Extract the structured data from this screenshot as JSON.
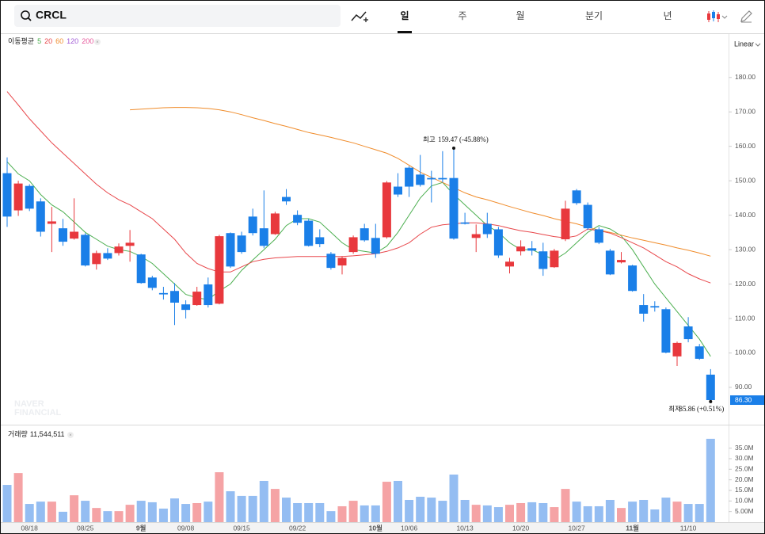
{
  "header": {
    "symbol": "CRCL",
    "tabs": [
      "일",
      "주",
      "월",
      "분기",
      "년"
    ],
    "active_tab": 0
  },
  "chart_data": [
    {
      "type": "candlestick",
      "ma_label": "이동평균",
      "scale": "Linear",
      "watermark": [
        "NAVER",
        "FINANCIAL"
      ],
      "up_color": "#e8383d",
      "down_color": "#1a7fe8",
      "categories": [
        null,
        null,
        "08/18",
        null,
        null,
        null,
        null,
        "08/25",
        null,
        null,
        null,
        null,
        "9월",
        null,
        null,
        null,
        "09/08",
        null,
        null,
        null,
        null,
        "09/15",
        null,
        null,
        null,
        null,
        "09/22",
        null,
        null,
        null,
        null,
        null,
        null,
        "10월",
        null,
        null,
        "10/06",
        null,
        null,
        null,
        null,
        "10/13",
        null,
        null,
        null,
        null,
        "10/20",
        null,
        null,
        null,
        null,
        "10/27",
        null,
        null,
        null,
        null,
        "11월",
        null,
        null,
        null,
        null,
        "11/10",
        null,
        null
      ],
      "open": [
        152.2,
        141.4,
        148.5,
        144.0,
        137.5,
        136.2,
        133.2,
        134.3,
        125.8,
        129.0,
        129.0,
        131.1,
        128.6,
        121.9,
        117.4,
        118.0,
        114.1,
        113.9,
        119.9,
        114.3,
        134.8,
        134.1,
        139.6,
        136.2,
        134.5,
        145.3,
        140.1,
        138.4,
        133.6,
        128.8,
        125.4,
        129.3,
        136.2,
        133.4,
        133.6,
        148.3,
        153.8,
        151.8,
        150.8,
        150.8,
        150.8,
        137.9,
        133.4,
        137.5,
        135.9,
        125.1,
        129.5,
        130.4,
        129.5,
        124.9,
        133.0,
        147.2,
        143.0,
        135.9,
        129.7,
        126.3,
        125.4,
        113.9,
        113.6,
        112.7,
        99.0,
        107.7,
        101.9,
        93.7
      ],
      "high": [
        156.8,
        150.0,
        149.0,
        144.9,
        142.4,
        138.9,
        144.9,
        134.8,
        129.7,
        130.4,
        131.8,
        135.7,
        128.8,
        122.4,
        119.2,
        120.3,
        115.3,
        119.2,
        121.9,
        134.3,
        135.0,
        135.2,
        141.9,
        147.2,
        141.0,
        147.6,
        141.4,
        138.9,
        135.9,
        129.3,
        128.1,
        134.1,
        137.5,
        137.5,
        149.9,
        152.2,
        154.3,
        157.5,
        152.9,
        158.6,
        159.47,
        140.7,
        137.3,
        140.7,
        136.6,
        127.6,
        132.7,
        132.5,
        132.0,
        130.2,
        144.2,
        147.6,
        143.7,
        136.6,
        130.2,
        129.3,
        125.6,
        117.1,
        115.0,
        113.2,
        103.3,
        110.4,
        102.6,
        95.3
      ],
      "low": [
        136.6,
        139.8,
        141.2,
        133.8,
        129.3,
        131.1,
        132.9,
        125.1,
        124.2,
        127.0,
        128.3,
        126.5,
        120.1,
        118.2,
        115.5,
        108.1,
        110.0,
        113.7,
        113.2,
        114.1,
        124.7,
        128.8,
        134.1,
        130.4,
        134.3,
        143.0,
        137.1,
        130.9,
        130.7,
        124.2,
        122.8,
        128.8,
        132.3,
        127.6,
        133.2,
        145.3,
        145.3,
        148.3,
        143.7,
        149.5,
        132.9,
        137.3,
        129.3,
        133.4,
        127.6,
        123.1,
        128.3,
        128.3,
        122.4,
        124.7,
        132.5,
        143.0,
        135.7,
        131.6,
        122.6,
        126.0,
        117.8,
        109.1,
        112.0,
        99.9,
        96.2,
        103.1,
        98.0,
        85.86
      ],
      "close": [
        139.6,
        149.2,
        141.9,
        135.2,
        138.2,
        132.3,
        135.2,
        125.4,
        129.0,
        127.4,
        130.9,
        132.0,
        120.3,
        118.9,
        117.0,
        114.6,
        112.5,
        117.8,
        113.9,
        133.9,
        125.1,
        129.3,
        134.8,
        131.1,
        140.5,
        144.0,
        137.8,
        131.1,
        131.6,
        124.7,
        127.6,
        133.6,
        132.7,
        128.8,
        149.5,
        146.0,
        148.3,
        148.8,
        150.4,
        150.4,
        133.2,
        137.5,
        134.5,
        134.5,
        128.3,
        126.5,
        130.9,
        129.7,
        124.4,
        129.7,
        141.9,
        143.5,
        136.2,
        132.0,
        122.8,
        127.0,
        118.0,
        111.4,
        113.2,
        100.1,
        102.9,
        104.0,
        98.3,
        86.3
      ],
      "moving_averages": [
        {
          "name": "5",
          "color": "#4caf50",
          "values": [
            155.5,
            152,
            150,
            146,
            143,
            141,
            138,
            135,
            133,
            131,
            130,
            129.5,
            128,
            126,
            123,
            120,
            117,
            116,
            115.5,
            118,
            120,
            124,
            127,
            130,
            133,
            137,
            139,
            139,
            138,
            135,
            132,
            130,
            129.5,
            129,
            131,
            135,
            140,
            145,
            148.5,
            149.5,
            146,
            143,
            140,
            137,
            135,
            132,
            130,
            130,
            128.5,
            127,
            129,
            132,
            135,
            137,
            136,
            134,
            130,
            125,
            120,
            116,
            112,
            108,
            104,
            99
          ]
        },
        {
          "name": "20",
          "color": "#e8474b",
          "values": [
            175.9,
            172,
            168,
            164.5,
            161,
            158,
            155,
            152,
            149,
            146.5,
            144.5,
            143,
            141,
            139,
            136,
            133,
            129,
            126,
            124.5,
            123.5,
            123.5,
            125,
            126.5,
            127.2,
            127.6,
            127.8,
            128,
            128,
            128,
            128,
            128,
            128.2,
            128.5,
            128.8,
            129.5,
            130.5,
            132,
            134.5,
            136.5,
            137.2,
            137.5,
            137.8,
            137.8,
            137.5,
            137,
            136.2,
            135.5,
            135,
            134.4,
            133.8,
            133.4,
            134,
            136,
            135.5,
            134.8,
            133.5,
            132,
            130.5,
            128.5,
            126.5,
            125,
            123,
            121.5,
            120.3
          ]
        },
        {
          "name": "60",
          "color": "#f08c2b",
          "values": [
            null,
            null,
            null,
            null,
            null,
            null,
            null,
            null,
            null,
            null,
            null,
            170.6,
            170.8,
            171,
            171.2,
            171.3,
            171.3,
            171.2,
            171,
            170.6,
            170,
            169.2,
            168.3,
            167.5,
            166.6,
            165.8,
            164.9,
            164,
            163.3,
            162.6,
            161.8,
            161,
            160,
            159,
            158,
            156.5,
            154.5,
            152.5,
            151,
            149.5,
            148,
            146.5,
            145.3,
            144.5,
            143.5,
            142.5,
            141.6,
            140.7,
            139.9,
            139,
            138.2,
            137.5,
            136.5,
            135.7,
            135,
            134.2,
            133.4,
            132.7,
            132,
            131.3,
            130.5,
            129.8,
            129,
            128.1
          ]
        },
        {
          "name": "120",
          "color": "#a15bd6"
        },
        {
          "name": "200",
          "color": "#e6559a"
        }
      ],
      "annotations": {
        "high_label": "최고",
        "high_text": "159.47 (-45.88%)",
        "low_label": "최저",
        "low_text": "85.86 (+0.51%)"
      },
      "last_price": {
        "value": 86.3,
        "label": "86.30"
      },
      "ylim": [
        79.4,
        192.6
      ],
      "yticks": [
        {
          "value": 180,
          "label": "180.00"
        },
        {
          "value": 170,
          "label": "170.00"
        },
        {
          "value": 160,
          "label": "160.00"
        },
        {
          "value": 150,
          "label": "150.00"
        },
        {
          "value": 140,
          "label": "140.00"
        },
        {
          "value": 130,
          "label": "130.00"
        },
        {
          "value": 120,
          "label": "120.00"
        },
        {
          "value": 110,
          "label": "110.00"
        },
        {
          "value": 100,
          "label": "100.00"
        },
        {
          "value": 90,
          "label": "90.00"
        }
      ]
    },
    {
      "type": "bar",
      "title": "거래량",
      "total": "11,544,511",
      "up_color": "#f5a3a5",
      "down_color": "#94bdf2",
      "values": [
        17.6,
        23.2,
        8.6,
        9.7,
        9.7,
        4.9,
        12.7,
        10.1,
        6.7,
        5.2,
        5.2,
        8.2,
        10.1,
        9.4,
        6.4,
        11.2,
        8.6,
        9.0,
        9.7,
        23.6,
        14.6,
        12.4,
        12.4,
        19.5,
        15.7,
        11.6,
        9.0,
        9.0,
        9.0,
        5.2,
        7.5,
        10.1,
        7.9,
        7.9,
        19.1,
        19.5,
        10.5,
        12.0,
        11.6,
        10.1,
        22.5,
        10.5,
        8.2,
        7.9,
        7.1,
        8.2,
        9.0,
        9.4,
        9.0,
        7.1,
        15.7,
        9.7,
        7.5,
        7.5,
        10.5,
        6.7,
        9.7,
        10.5,
        6.0,
        11.6,
        9.7,
        8.6,
        8.6,
        39.4
      ],
      "ylim": [
        0,
        44.6
      ],
      "yticks": [
        {
          "value": 35,
          "label": "35.0M"
        },
        {
          "value": 30,
          "label": "30.0M"
        },
        {
          "value": 25,
          "label": "25.0M"
        },
        {
          "value": 20,
          "label": "20.0M"
        },
        {
          "value": 15,
          "label": "15.0M"
        },
        {
          "value": 10,
          "label": "10.0M"
        },
        {
          "value": 5,
          "label": "5.00M"
        }
      ]
    }
  ]
}
